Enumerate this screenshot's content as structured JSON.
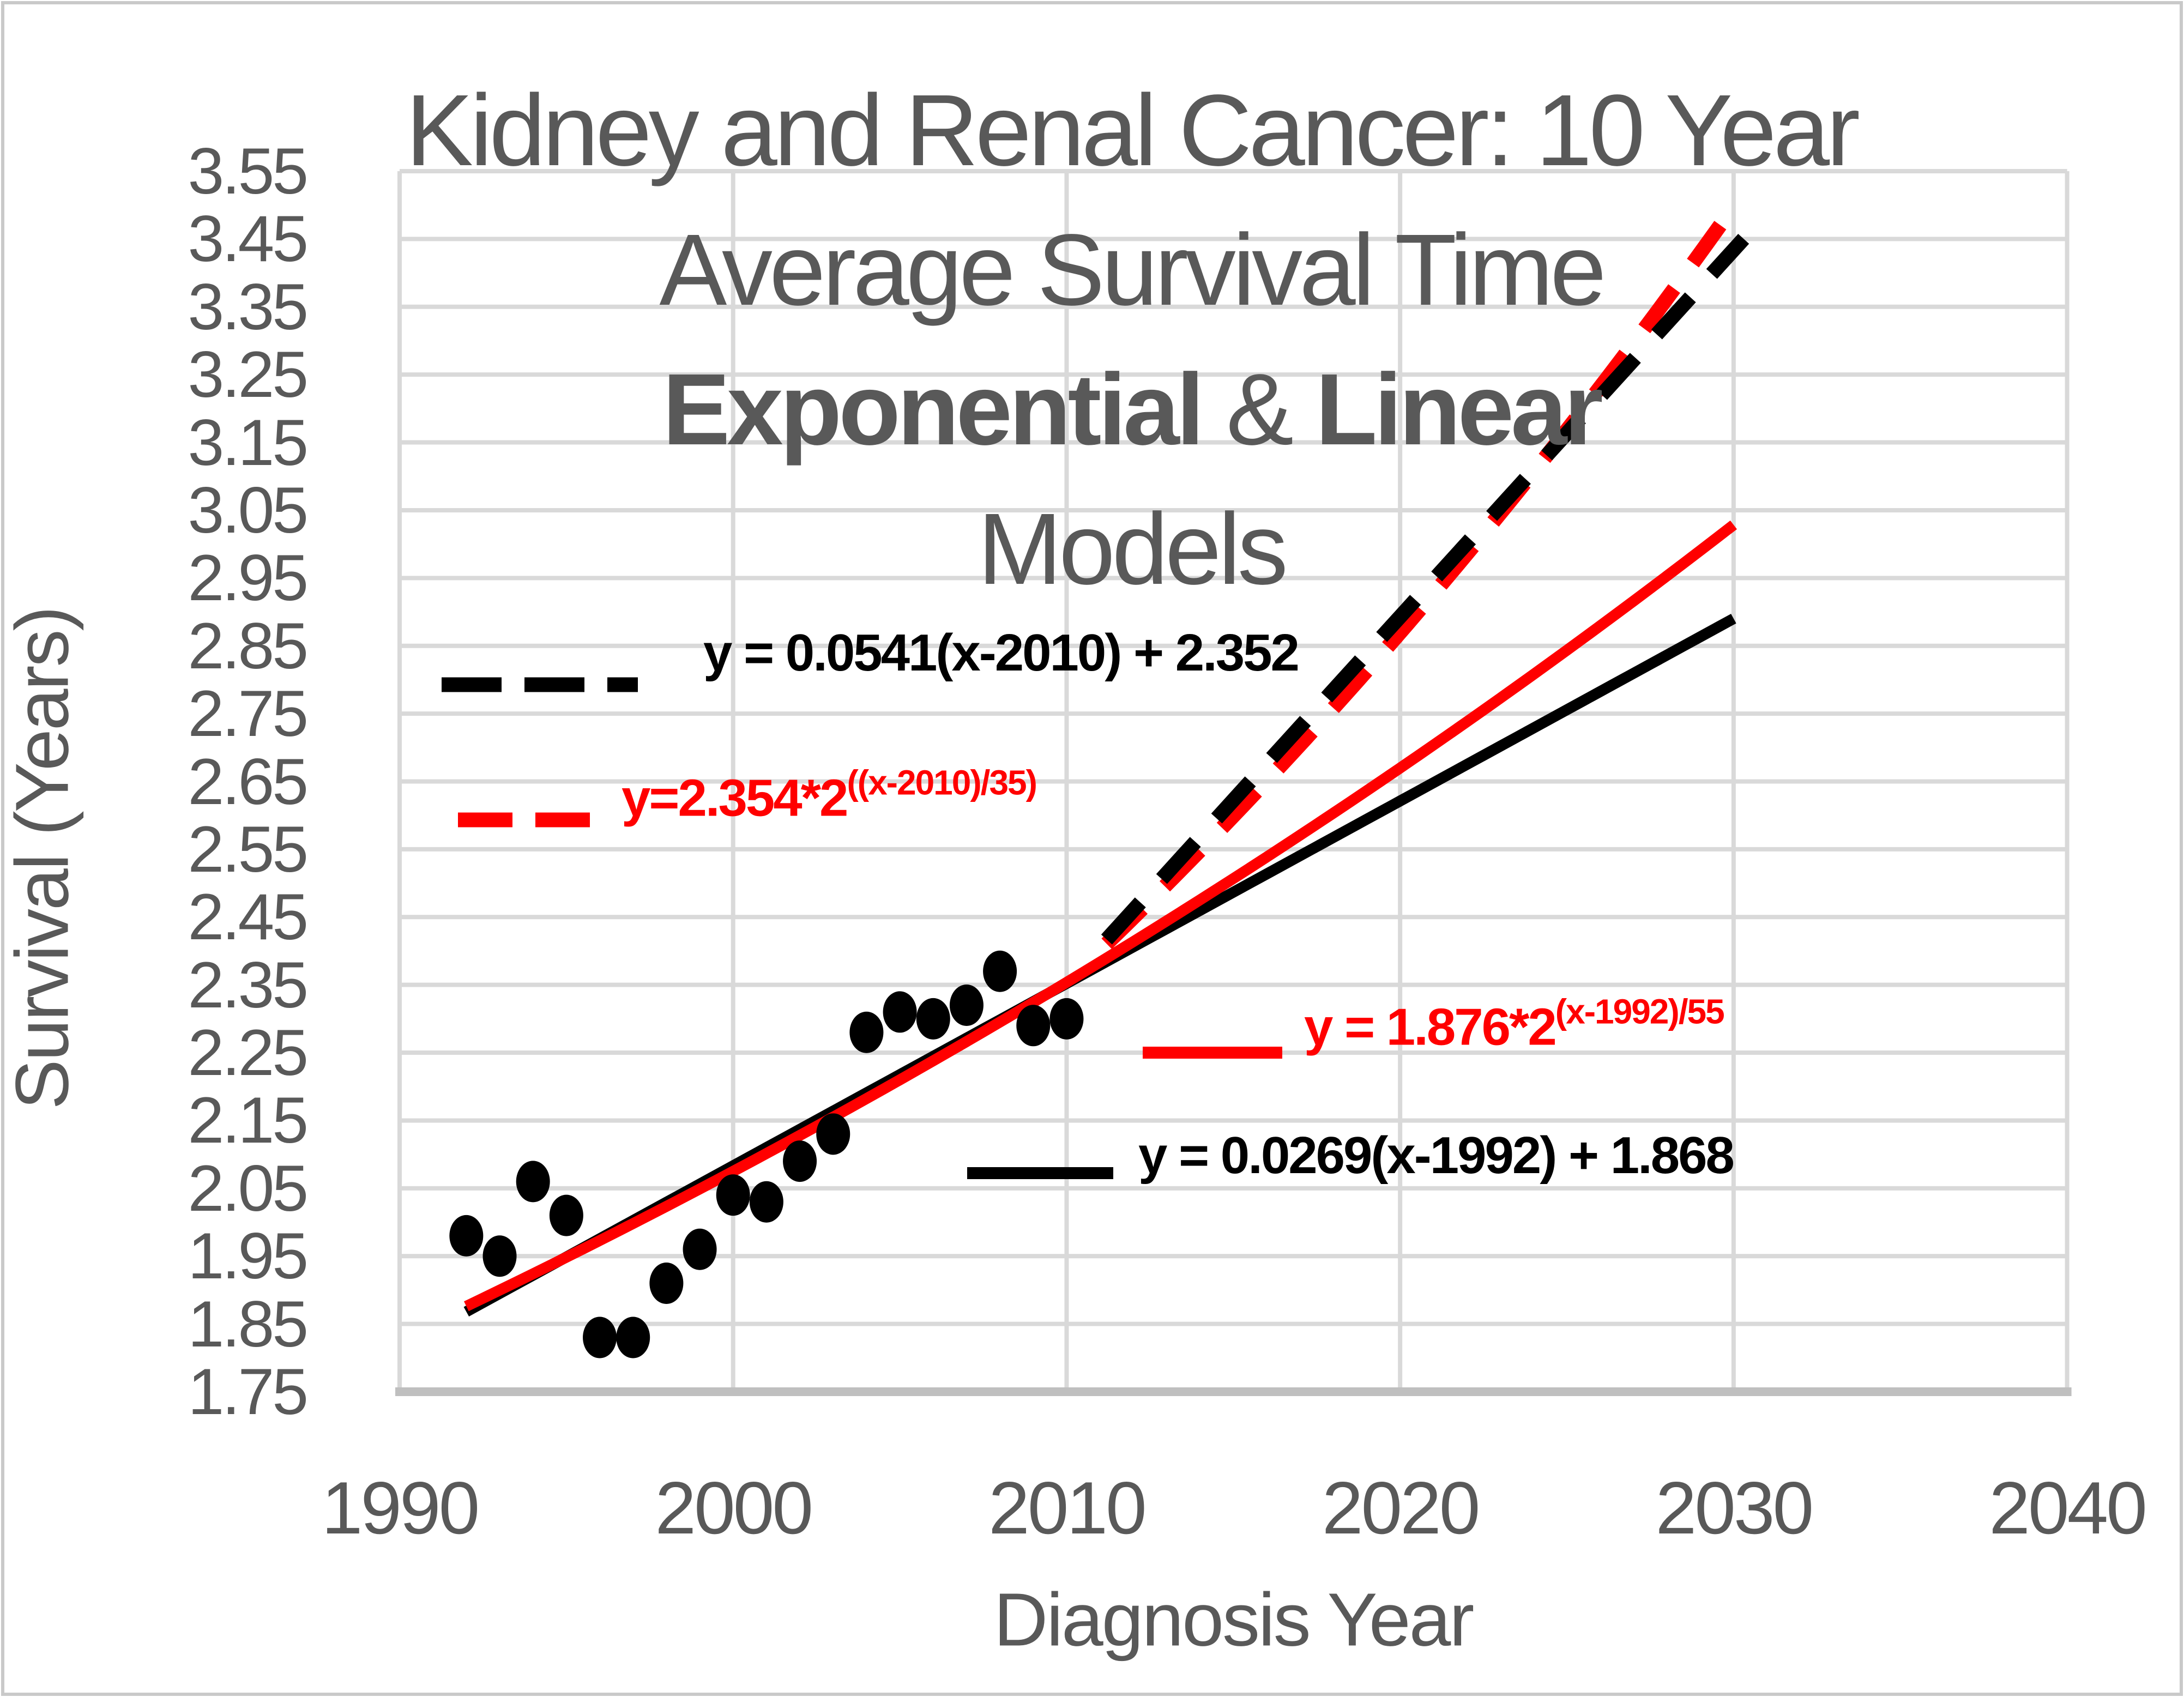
{
  "title": {
    "line1": "Kidney and Renal Cancer: 10 Year",
    "line2": "Average Survival Time",
    "line3_part1": "Exponential",
    "line3_amp": " & ",
    "line3_part2": "Linear",
    "line4": "Models"
  },
  "axes": {
    "y_label": "Survival (Years)",
    "x_label": "Diagnosis Year",
    "y_ticks": [
      "3.55",
      "3.45",
      "3.35",
      "3.25",
      "3.15",
      "3.05",
      "2.95",
      "2.85",
      "2.75",
      "2.65",
      "2.55",
      "2.45",
      "2.35",
      "2.25",
      "2.15",
      "2.05",
      "1.95",
      "1.85",
      "1.75"
    ],
    "x_ticks": [
      "1990",
      "2000",
      "2010",
      "2020",
      "2030",
      "2040"
    ]
  },
  "equations": {
    "linear_2010": {
      "pre": "y = 0.0541(x-2010) + 2.352",
      "sup": ""
    },
    "exp_2010": {
      "pre": "y=2.354*2",
      "sup": "((x-2010)/35)"
    },
    "exp_1992": {
      "pre": "y = 1.876*2",
      "sup": "(x-1992)/55"
    },
    "linear_1992": {
      "pre": "y = 0.0269(x-1992) + 1.868",
      "sup": ""
    }
  },
  "colors": {
    "red": "#FF0000",
    "black": "#000000",
    "text_gray": "#595959",
    "gridline": "#D9D9D9",
    "axis_line": "#BFBFBF",
    "background": "#FFFFFF"
  },
  "chart_data": {
    "type": "scatter",
    "title": "Kidney and Renal Cancer: 10 Year Average Survival Time — Exponential & Linear Models",
    "xlabel": "Diagnosis Year",
    "ylabel": "Survival (Years)",
    "xlim": [
      1990,
      2040
    ],
    "ylim": [
      1.75,
      3.55
    ],
    "x_tick_step": 10,
    "y_tick_step": 0.1,
    "grid": true,
    "legend_position": "inside-plot",
    "points": {
      "name": "10 year average survival time",
      "x": [
        1992,
        1993,
        1994,
        1995,
        1996,
        1997,
        1998,
        1999,
        2000,
        2001,
        2002,
        2003,
        2004,
        2005,
        2006,
        2007,
        2008,
        2009,
        2010
      ],
      "y": [
        1.98,
        1.95,
        2.06,
        2.01,
        1.83,
        1.83,
        1.91,
        1.96,
        2.04,
        2.03,
        2.09,
        2.13,
        2.28,
        2.31,
        2.3,
        2.32,
        2.37,
        2.29,
        2.3
      ]
    },
    "models": [
      {
        "name": "linear_1992",
        "equation": "y = 0.0269(x-1992) + 1.868",
        "type": "linear",
        "slope": 0.0269,
        "x0": 1992,
        "intercept": 1.868,
        "x_start": 1992,
        "x_end": 2030,
        "style": "solid",
        "color": "#000000"
      },
      {
        "name": "exp_1992",
        "equation": "y = 1.876*2^((x-1992)/55)",
        "type": "exponential",
        "coeff": 1.876,
        "doubling_period": 55,
        "x0": 1992,
        "x_start": 1992,
        "x_end": 2030,
        "style": "solid",
        "color": "#FF0000"
      },
      {
        "name": "exp_2010",
        "equation": "y=2.354*2^((x-2010)/35)",
        "type": "exponential",
        "coeff": 2.354,
        "doubling_period": 35,
        "x0": 2010,
        "x_start": 2011.2,
        "x_end": 2029.6,
        "style": "dashed",
        "color": "#FF0000"
      },
      {
        "name": "linear_2010",
        "equation": "y = 0.0541(x-2010) + 2.352",
        "type": "linear",
        "slope": 0.0541,
        "x0": 2010,
        "intercept": 2.352,
        "x_start": 2011.2,
        "x_end": 2030.3,
        "style": "dashed",
        "color": "#000000"
      }
    ]
  }
}
